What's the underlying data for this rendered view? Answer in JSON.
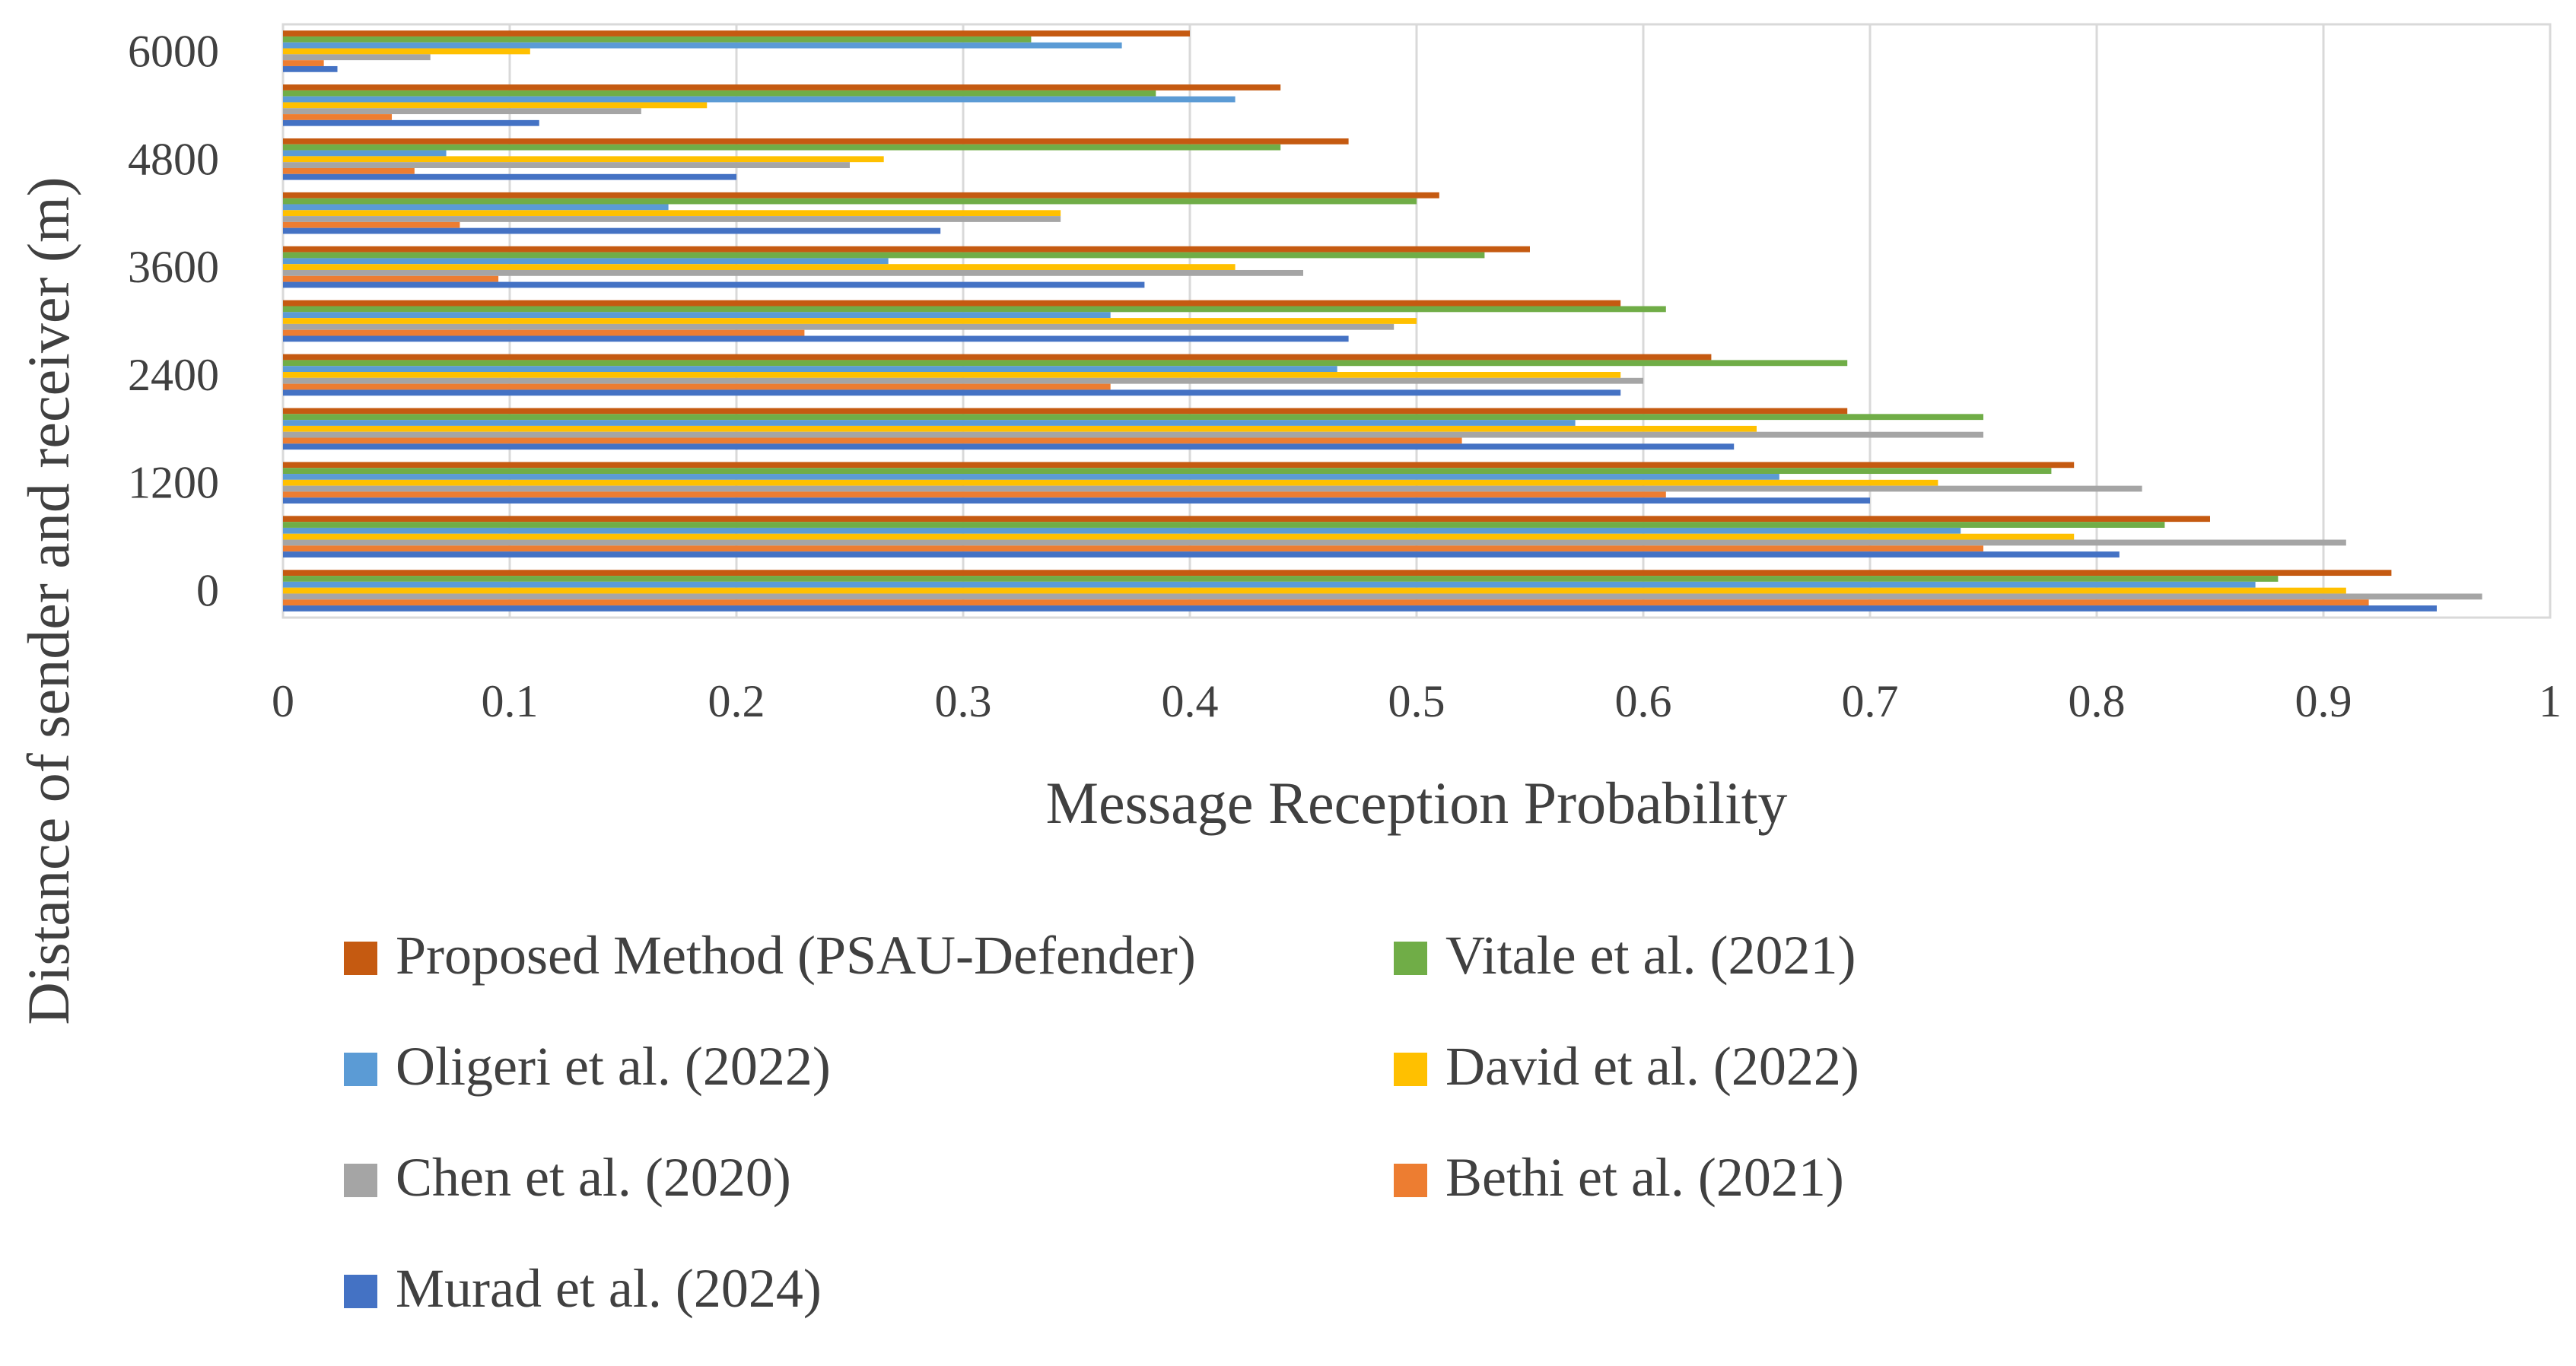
{
  "chart_data": {
    "type": "bar",
    "orientation": "horizontal",
    "title": "",
    "xlabel": "Message Reception Probability",
    "ylabel": "Distance of sender and receiver (m)",
    "xlim": [
      0,
      1
    ],
    "x_ticks": [
      "0",
      "0.1",
      "0.2",
      "0.3",
      "0.4",
      "0.5",
      "0.6",
      "0.7",
      "0.8",
      "0.9",
      "1"
    ],
    "categories": [
      "0",
      "600",
      "1200",
      "1800",
      "2400",
      "3000",
      "3600",
      "4200",
      "4800",
      "5400",
      "6000"
    ],
    "category_tick_labels": [
      "0",
      "",
      "1200",
      "",
      "2400",
      "",
      "3600",
      "",
      "4800",
      "",
      "6000"
    ],
    "grid": "vertical",
    "legend_position": "bottom",
    "series": [
      {
        "name": "Proposed Method (PSAU-Defender)",
        "color": "#C55A11",
        "values": [
          0.93,
          0.85,
          0.79,
          0.69,
          0.63,
          0.59,
          0.55,
          0.51,
          0.47,
          0.44,
          0.4
        ]
      },
      {
        "name": "Vitale et al. (2021)",
        "color": "#70AD47",
        "values": [
          0.88,
          0.83,
          0.78,
          0.75,
          0.69,
          0.61,
          0.53,
          0.5,
          0.44,
          0.385,
          0.33
        ]
      },
      {
        "name": "Oligeri et al. (2022)",
        "color": "#5B9BD5",
        "values": [
          0.87,
          0.74,
          0.66,
          0.57,
          0.465,
          0.365,
          0.267,
          0.17,
          0.072,
          0.42,
          0.37
        ]
      },
      {
        "name": "David et al. (2022)",
        "color": "#FFC000",
        "values": [
          0.91,
          0.79,
          0.73,
          0.65,
          0.59,
          0.5,
          0.42,
          0.343,
          0.265,
          0.187,
          0.109
        ]
      },
      {
        "name": "Chen et al. (2020)",
        "color": "#A5A5A5",
        "values": [
          0.97,
          0.91,
          0.82,
          0.75,
          0.6,
          0.49,
          0.45,
          0.343,
          0.25,
          0.158,
          0.065
        ]
      },
      {
        "name": "Bethi et al. (2021)",
        "color": "#ED7D31",
        "values": [
          0.92,
          0.75,
          0.61,
          0.52,
          0.365,
          0.23,
          0.095,
          0.078,
          0.058,
          0.048,
          0.018
        ]
      },
      {
        "name": "Murad et al. (2024)",
        "color": "#4472C4",
        "values": [
          0.95,
          0.81,
          0.7,
          0.64,
          0.59,
          0.47,
          0.38,
          0.29,
          0.2,
          0.113,
          0.024
        ]
      }
    ],
    "legend_order": [
      0,
      1,
      2,
      3,
      4,
      5,
      6
    ]
  }
}
